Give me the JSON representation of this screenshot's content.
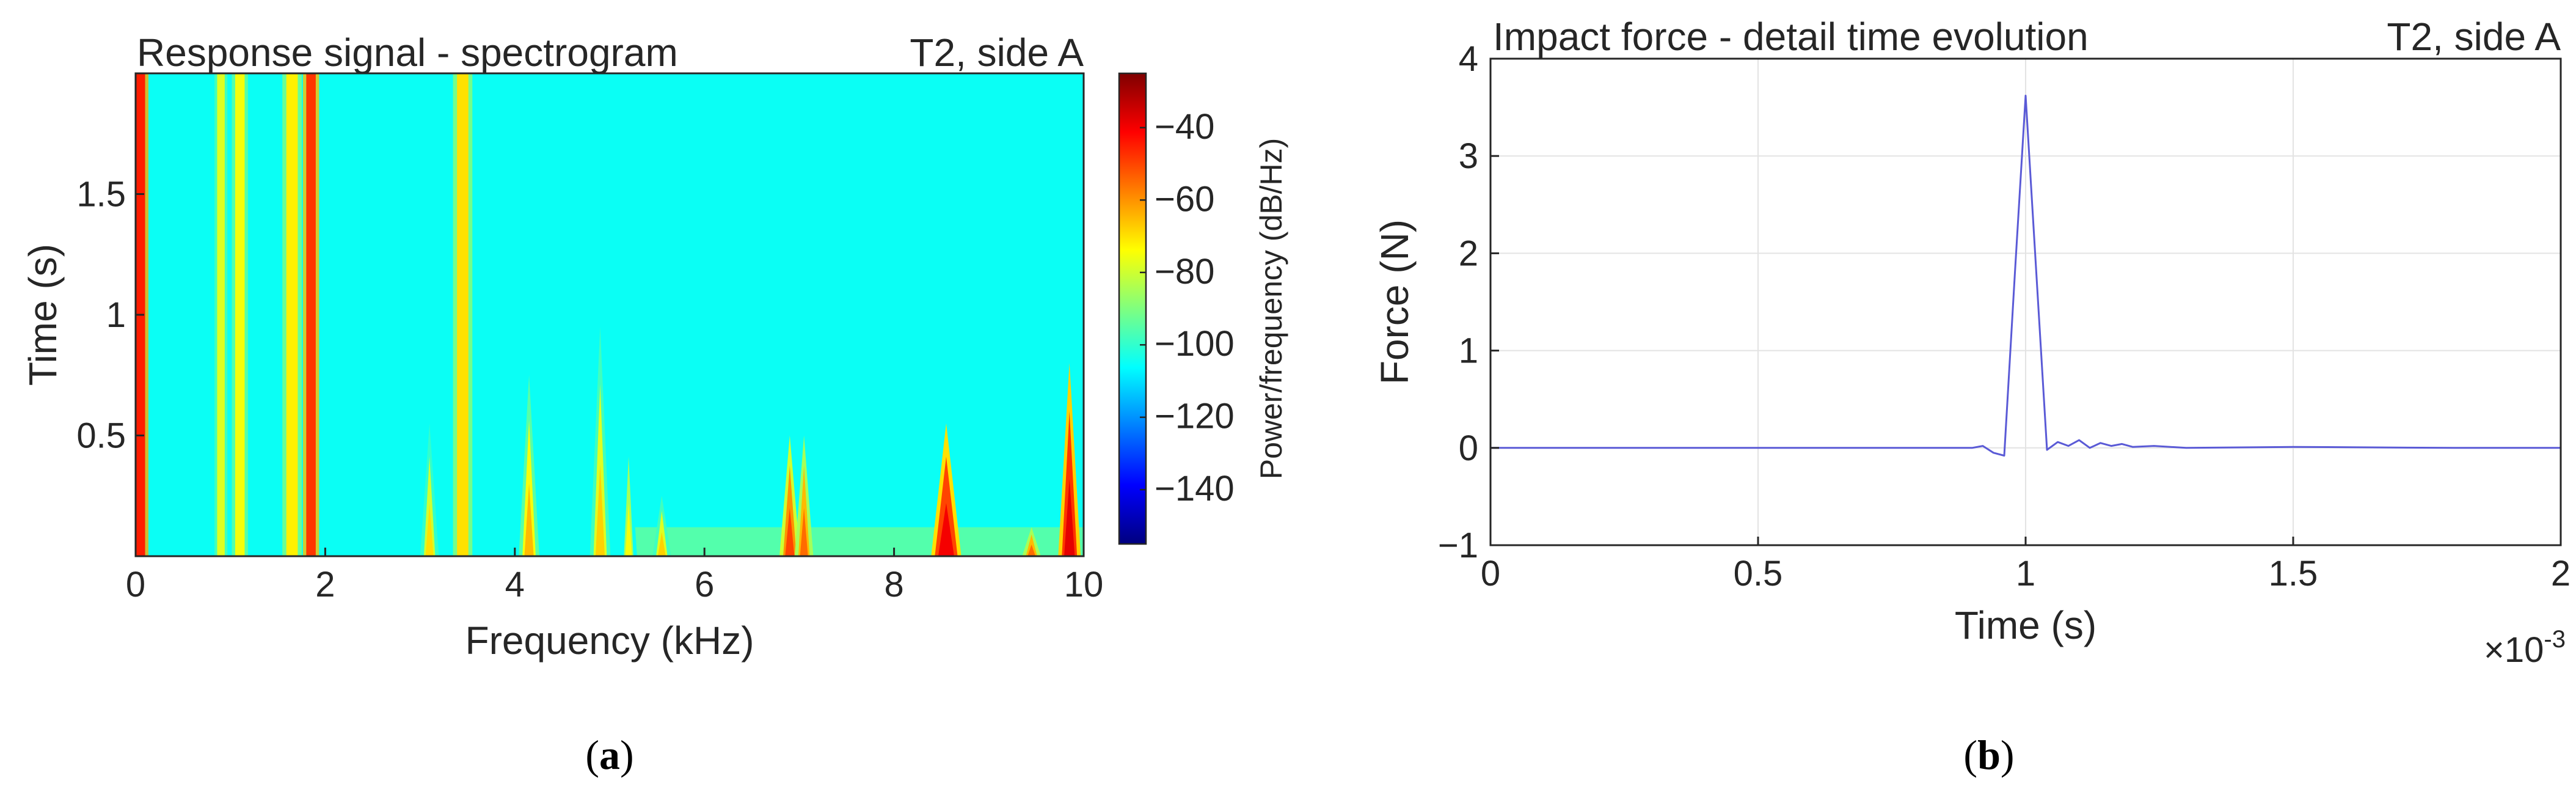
{
  "chart_data": [
    {
      "type": "heatmap",
      "panel_label": "a",
      "title": "Response signal - spectrogram",
      "annotation": "T2, side A",
      "xlabel": "Frequency (kHz)",
      "ylabel": "Time (s)",
      "xlim": [
        0,
        10
      ],
      "ylim": [
        0,
        2
      ],
      "xticks": [
        0,
        2,
        4,
        6,
        8,
        10
      ],
      "yticks": [
        0.5,
        1,
        1.5
      ],
      "background_level_db": -105,
      "colorbar": {
        "label": "Power/frequency (dB/Hz)",
        "range": [
          -155,
          -25
        ],
        "ticks": [
          -40,
          -60,
          -80,
          -100,
          -120,
          -140
        ],
        "colors": [
          "#00007f",
          "#0000ff",
          "#007fff",
          "#00ffff",
          "#7fff7f",
          "#ffff00",
          "#ff7f00",
          "#ff0000",
          "#7f0000"
        ]
      },
      "stripes": [
        {
          "freq_khz": 0.05,
          "width_khz": 0.1,
          "time_extent_s": 2.0,
          "level_db": -45
        },
        {
          "freq_khz": 0.9,
          "width_khz": 0.08,
          "time_extent_s": 2.0,
          "level_db": -78
        },
        {
          "freq_khz": 1.1,
          "width_khz": 0.1,
          "time_extent_s": 2.0,
          "level_db": -75
        },
        {
          "freq_khz": 1.65,
          "width_khz": 0.12,
          "time_extent_s": 2.0,
          "level_db": -72
        },
        {
          "freq_khz": 1.85,
          "width_khz": 0.1,
          "time_extent_s": 2.0,
          "level_db": -48
        },
        {
          "freq_khz": 3.45,
          "width_khz": 0.12,
          "time_extent_s": 2.0,
          "level_db": -70
        }
      ],
      "peaks": [
        {
          "freq_khz": 3.1,
          "width_khz": 0.12,
          "time_extent_s": 0.55,
          "level_db": -70
        },
        {
          "freq_khz": 4.15,
          "width_khz": 0.14,
          "time_extent_s": 0.75,
          "level_db": -65
        },
        {
          "freq_khz": 4.9,
          "width_khz": 0.14,
          "time_extent_s": 0.95,
          "level_db": -68
        },
        {
          "freq_khz": 5.2,
          "width_khz": 0.1,
          "time_extent_s": 0.55,
          "level_db": -75
        },
        {
          "freq_khz": 5.55,
          "width_khz": 0.12,
          "time_extent_s": 0.25,
          "level_db": -68
        },
        {
          "freq_khz": 6.9,
          "width_khz": 0.14,
          "time_extent_s": 0.5,
          "level_db": -50
        },
        {
          "freq_khz": 7.05,
          "width_khz": 0.12,
          "time_extent_s": 0.5,
          "level_db": -55
        },
        {
          "freq_khz": 8.55,
          "width_khz": 0.24,
          "time_extent_s": 0.55,
          "level_db": -40
        },
        {
          "freq_khz": 9.45,
          "width_khz": 0.12,
          "time_extent_s": 0.12,
          "level_db": -55
        },
        {
          "freq_khz": 9.85,
          "width_khz": 0.16,
          "time_extent_s": 0.8,
          "level_db": -38
        }
      ]
    },
    {
      "type": "line",
      "panel_label": "b",
      "title": "Impact force - detail time evolution",
      "annotation": "T2, side A",
      "xlabel": "Time (s)",
      "ylabel": "Force (N)",
      "x_multiplier": "×10",
      "x_multiplier_exponent": "-3",
      "xlim": [
        0,
        2
      ],
      "ylim": [
        -1,
        4
      ],
      "xticks": [
        0,
        0.5,
        1,
        1.5,
        2
      ],
      "xtick_labels": [
        "0",
        "0.5",
        "1",
        "1.5",
        "2"
      ],
      "yticks": [
        -1,
        0,
        1,
        2,
        3,
        4
      ],
      "grid": true,
      "line_color": "#5a5ad6",
      "series": [
        {
          "name": "Impact force",
          "x": [
            0,
            0.5,
            0.9,
            0.92,
            0.94,
            0.96,
            0.98,
            1.0,
            1.02,
            1.04,
            1.06,
            1.08,
            1.1,
            1.12,
            1.14,
            1.16,
            1.18,
            1.2,
            1.24,
            1.3,
            1.5,
            1.8,
            2.0
          ],
          "y": [
            0,
            0,
            0,
            0.02,
            -0.05,
            -0.08,
            1.8,
            3.62,
            1.8,
            -0.02,
            0.06,
            0.02,
            0.08,
            0.0,
            0.05,
            0.02,
            0.04,
            0.01,
            0.02,
            0.0,
            0.01,
            0.0,
            0.0
          ]
        }
      ]
    }
  ]
}
